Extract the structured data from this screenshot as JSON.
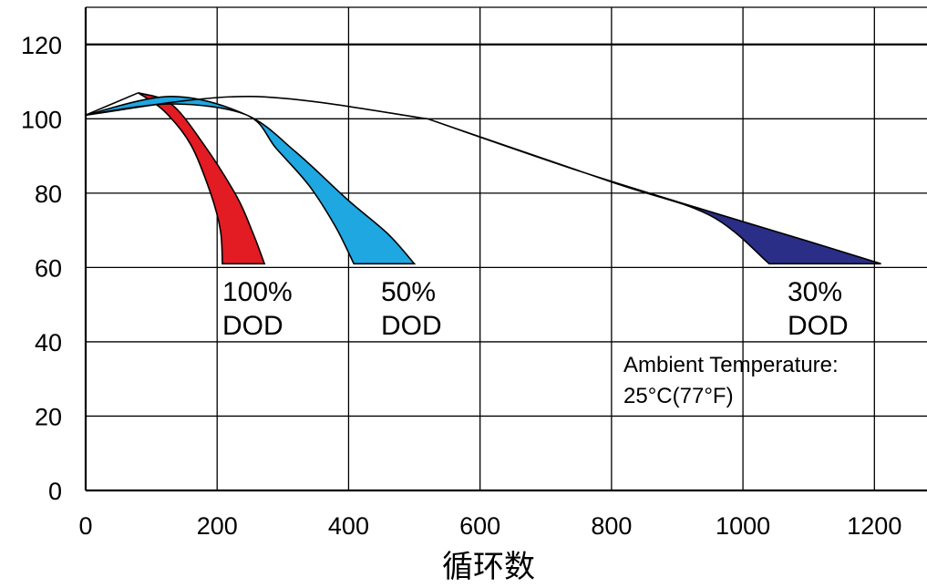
{
  "chart_data": {
    "type": "area",
    "title": "",
    "xlabel": "循环数",
    "ylabel": "",
    "xlim": [
      0,
      1280
    ],
    "ylim": [
      0,
      130
    ],
    "grid": true,
    "x_ticks": [
      0,
      200,
      400,
      600,
      800,
      1000,
      1200
    ],
    "y_ticks": [
      0,
      20,
      40,
      60,
      80,
      100,
      120
    ],
    "reference_line": {
      "y": 120
    },
    "series": [
      {
        "name": "100% DOD",
        "color": "#e31b23",
        "upper": [
          [
            0,
            101
          ],
          [
            80,
            107
          ],
          [
            130,
            104
          ],
          [
            180,
            93
          ],
          [
            230,
            79
          ],
          [
            255,
            69
          ],
          [
            272,
            61
          ]
        ],
        "lower": [
          [
            0,
            101
          ],
          [
            80,
            107
          ],
          [
            120,
            102
          ],
          [
            160,
            93
          ],
          [
            190,
            80
          ],
          [
            205,
            70
          ],
          [
            208,
            61
          ]
        ]
      },
      {
        "name": "50% DOD",
        "color": "#1ea7e1",
        "upper": [
          [
            0,
            101
          ],
          [
            130,
            106
          ],
          [
            245,
            101
          ],
          [
            320,
            91
          ],
          [
            400,
            78
          ],
          [
            460,
            69
          ],
          [
            500,
            61
          ]
        ],
        "lower": [
          [
            0,
            101
          ],
          [
            130,
            104
          ],
          [
            245,
            101
          ],
          [
            290,
            92
          ],
          [
            340,
            82
          ],
          [
            380,
            71
          ],
          [
            408,
            61
          ]
        ]
      },
      {
        "name": "30% DOD",
        "color": "#2a2e87",
        "upper": [
          [
            0,
            101
          ],
          [
            250,
            106
          ],
          [
            520,
            100
          ],
          [
            750,
            86
          ],
          [
            950,
            75
          ],
          [
            1100,
            67
          ],
          [
            1210,
            61
          ]
        ],
        "lower": [
          [
            0,
            101
          ],
          [
            250,
            106
          ],
          [
            520,
            100
          ],
          [
            800,
            83
          ],
          [
            950,
            74
          ],
          [
            1040,
            61
          ]
        ]
      }
    ],
    "annotations": {
      "dod100": [
        "100%",
        "DOD"
      ],
      "dod50": [
        "50%",
        "DOD"
      ],
      "dod30": [
        "30%",
        "DOD"
      ],
      "ambient": [
        "Ambient Temperature:",
        "25°C(77°F)"
      ]
    }
  }
}
